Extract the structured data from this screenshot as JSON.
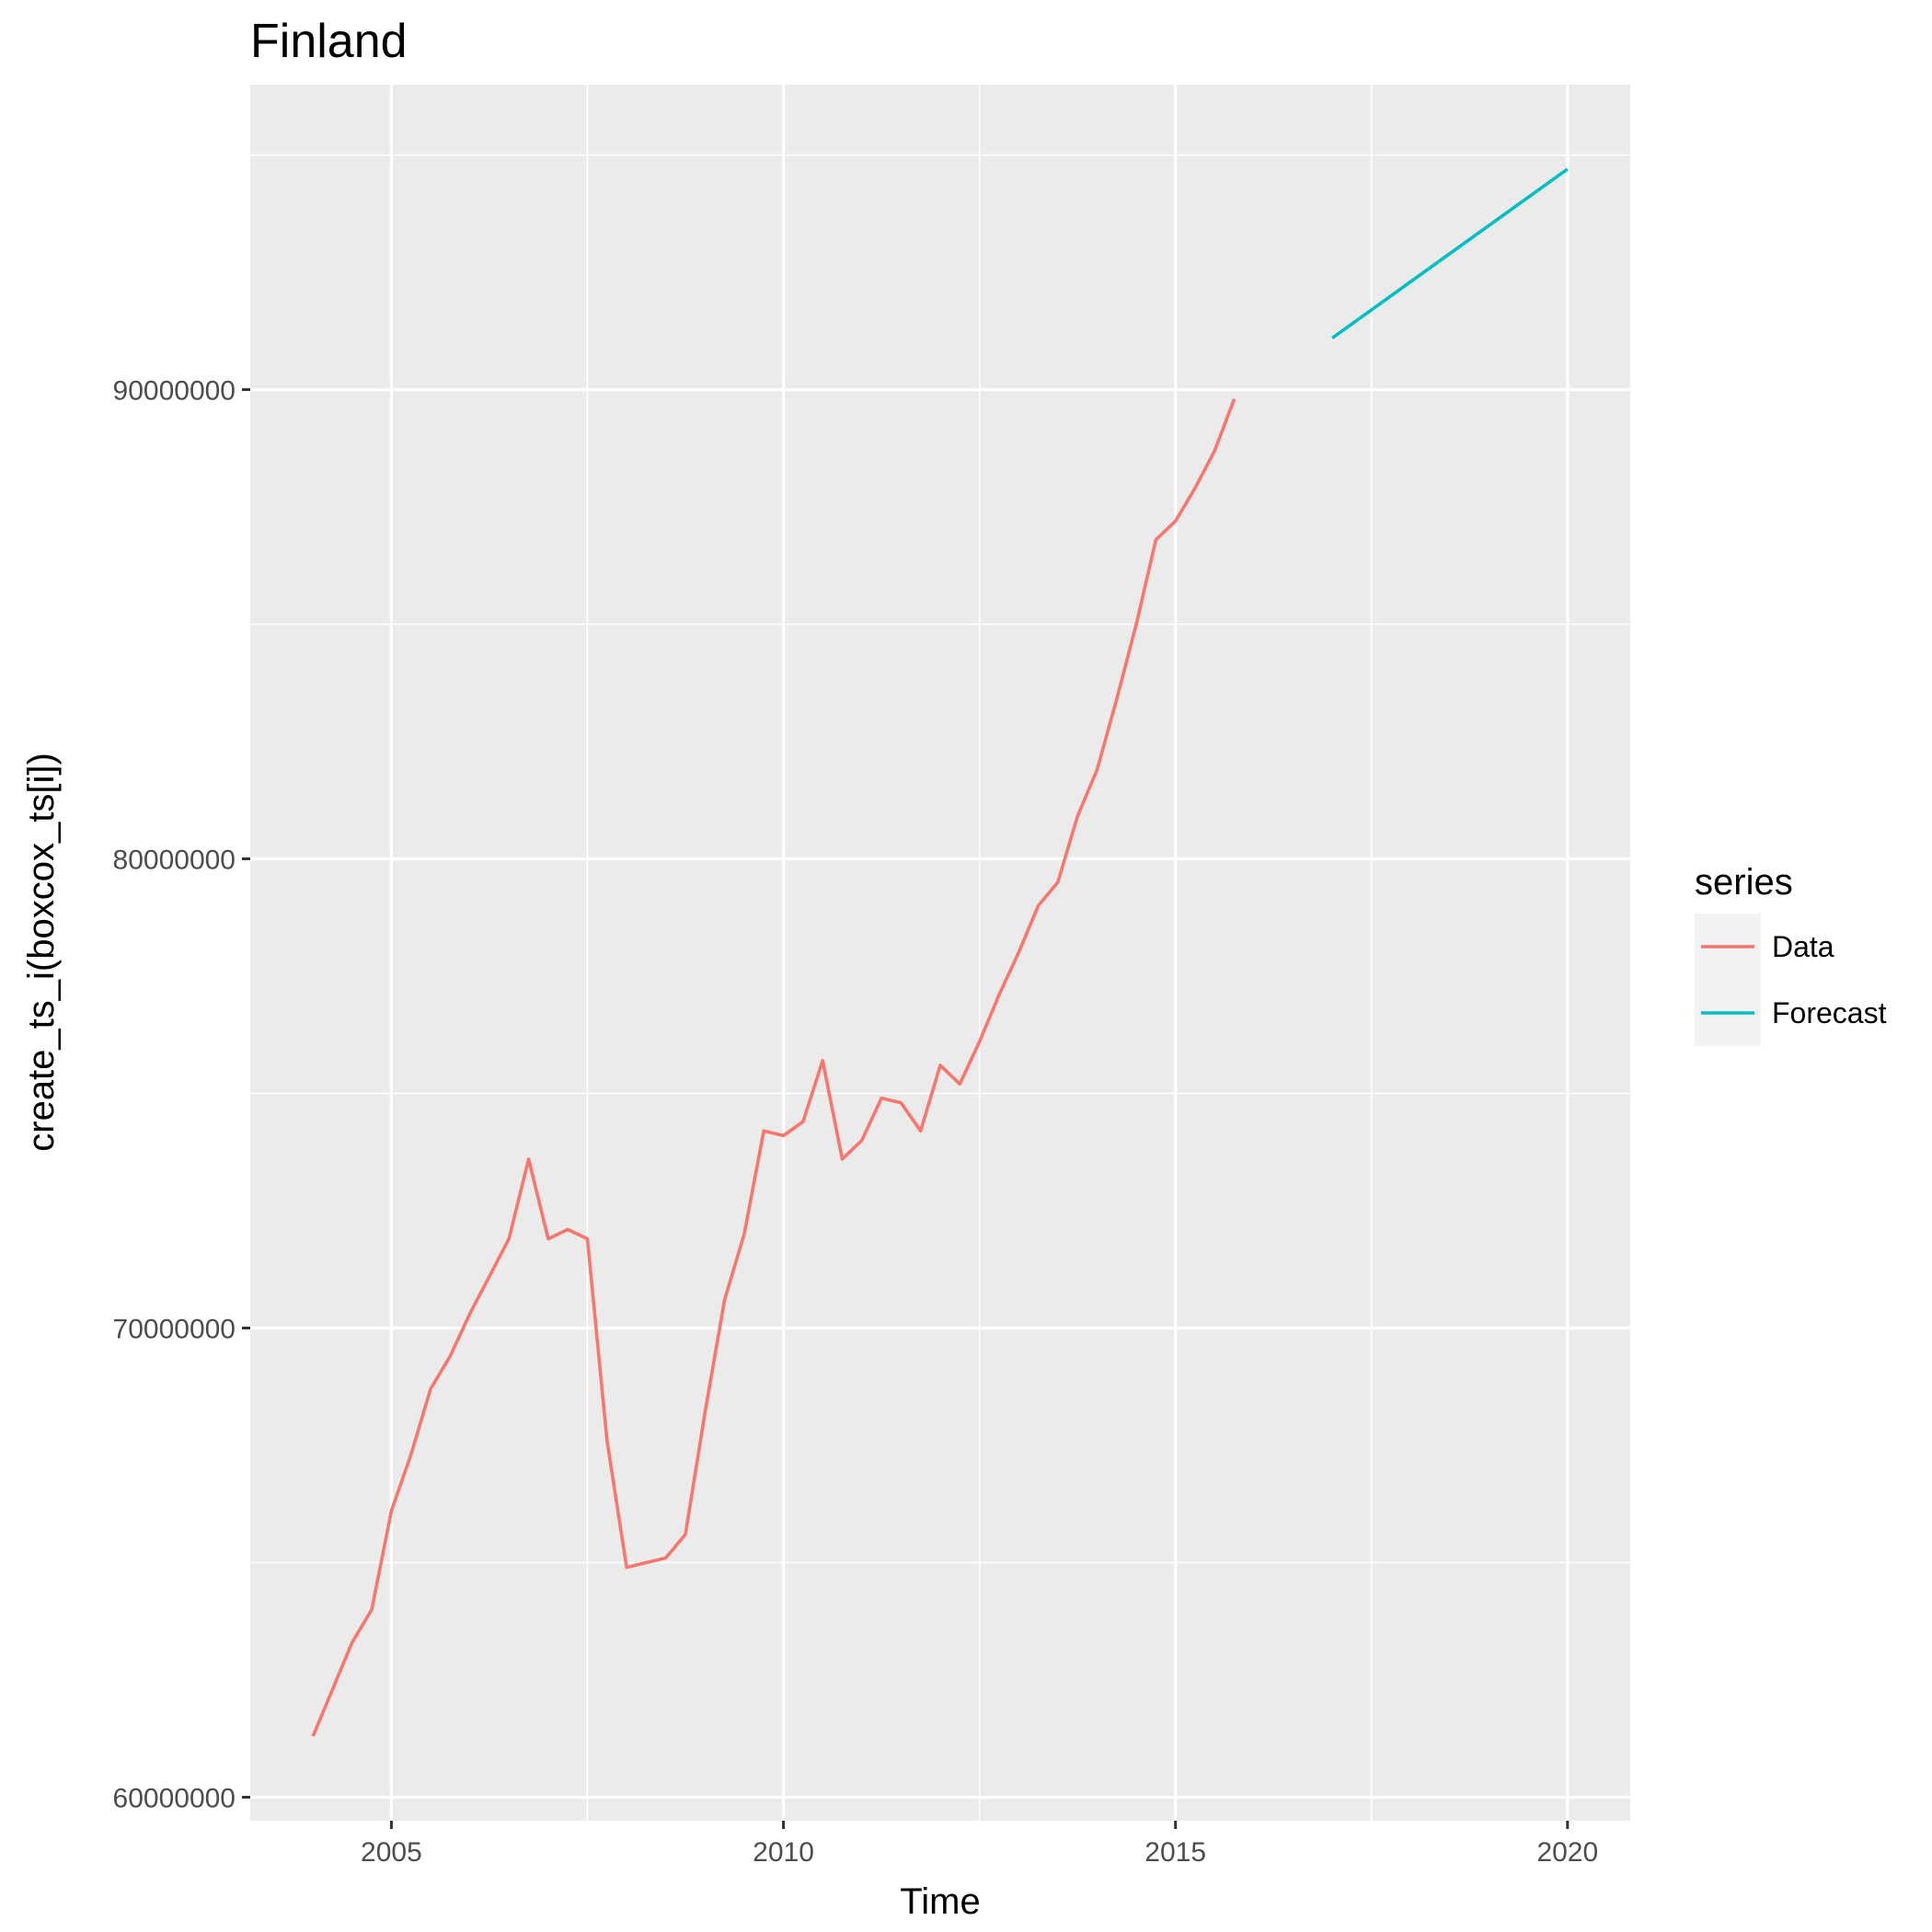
{
  "chart_data": {
    "type": "line",
    "title": "Finland",
    "xlabel": "Time",
    "ylabel": "create_ts_i(boxcox_ts[i])",
    "xlim": [
      2003.2,
      2020.8
    ],
    "ylim": [
      59500000,
      96500000
    ],
    "x_ticks": [
      2005,
      2010,
      2015,
      2020
    ],
    "x_tick_labels": [
      "2005",
      "2010",
      "2015",
      "2020"
    ],
    "y_ticks": [
      60000000,
      70000000,
      80000000,
      90000000
    ],
    "y_tick_labels": [
      "60000000",
      "70000000",
      "80000000",
      "90000000"
    ],
    "grid": true,
    "legend": {
      "title": "series",
      "position": "right"
    },
    "series": [
      {
        "name": "Data",
        "color": "#F8766D",
        "x": [
          2004,
          2004.25,
          2004.5,
          2004.75,
          2005,
          2005.25,
          2005.5,
          2005.75,
          2006,
          2006.25,
          2006.5,
          2006.75,
          2007,
          2007.25,
          2007.5,
          2007.75,
          2008,
          2008.25,
          2008.5,
          2008.75,
          2009,
          2009.25,
          2009.5,
          2009.75,
          2010,
          2010.25,
          2010.5,
          2010.75,
          2011,
          2011.25,
          2011.5,
          2011.75,
          2012,
          2012.25,
          2012.5,
          2012.75,
          2013,
          2013.25,
          2013.5,
          2013.75,
          2014,
          2014.25,
          2014.5,
          2014.75,
          2015,
          2015.25,
          2015.5,
          2015.75
        ],
        "values": [
          61300000,
          62300000,
          63300000,
          64000000,
          66100000,
          67300000,
          68700000,
          69400000,
          70300000,
          71100000,
          71900000,
          73600000,
          71900000,
          72100000,
          71900000,
          67600000,
          64900000,
          65000000,
          65100000,
          65600000,
          68200000,
          70600000,
          72000000,
          74200000,
          74100000,
          74400000,
          75700000,
          73600000,
          74000000,
          74900000,
          74800000,
          74200000,
          75600000,
          75200000,
          76100000,
          77100000,
          78000000,
          79000000,
          79500000,
          80900000,
          81900000,
          83400000,
          85000000,
          86800000,
          87200000,
          87900000,
          88700000,
          89800000
        ]
      },
      {
        "name": "Forecast",
        "color": "#00BFC4",
        "x": [
          2017,
          2020
        ],
        "values": [
          91100000,
          94700000
        ]
      }
    ]
  }
}
